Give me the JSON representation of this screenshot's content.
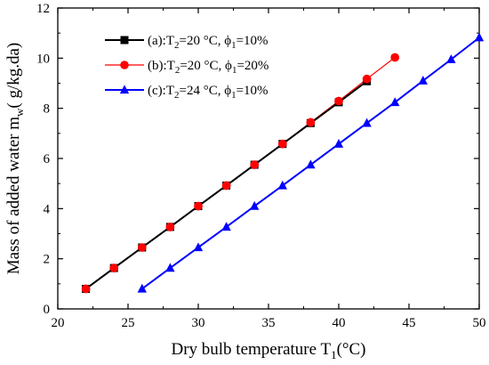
{
  "chart_data": {
    "type": "line",
    "xlabel": "Dry bulb temperature T",
    "xlabel_sub": "1",
    "xlabel_unit": "(°C)",
    "ylabel": "Mass of added water m",
    "ylabel_sub": "w",
    "ylabel_unit": "( g/kg.da)",
    "xlim": [
      20,
      50
    ],
    "ylim": [
      0,
      12
    ],
    "xticks": [
      20,
      25,
      30,
      35,
      40,
      45,
      50
    ],
    "yticks": [
      0,
      2,
      4,
      6,
      8,
      10,
      12
    ],
    "grid": false,
    "legend_position": "top-left",
    "series": [
      {
        "legend_main": "(a):T",
        "legend_sub1": "2",
        "legend_mid": "=20 °C, ϕ",
        "legend_sub2": "1",
        "legend_end": "=10%",
        "color": "#000000",
        "marker": "square",
        "x": [
          22,
          24,
          26,
          28,
          30,
          32,
          34,
          36,
          38,
          40,
          42
        ],
        "y": [
          0.8,
          1.63,
          2.45,
          3.27,
          4.1,
          4.92,
          5.75,
          6.58,
          7.41,
          8.24,
          9.08
        ]
      },
      {
        "legend_main": "(b):T",
        "legend_sub1": "2",
        "legend_mid": "=20 °C, ϕ",
        "legend_sub2": "1",
        "legend_end": "=20%",
        "color": "#ff0000",
        "marker": "circle",
        "x": [
          22,
          24,
          26,
          28,
          30,
          32,
          34,
          36,
          38,
          40,
          42,
          44
        ],
        "y": [
          0.8,
          1.63,
          2.45,
          3.27,
          4.1,
          4.92,
          5.75,
          6.58,
          7.44,
          8.29,
          9.17,
          10.03
        ]
      },
      {
        "legend_main": "(c):T",
        "legend_sub1": "2",
        "legend_mid": "=24 °C, ϕ",
        "legend_sub2": "1",
        "legend_end": "=10%",
        "color": "#0000ff",
        "marker": "triangle",
        "x": [
          26,
          28,
          30,
          32,
          34,
          36,
          38,
          40,
          42,
          44,
          46,
          48,
          50
        ],
        "y": [
          0.8,
          1.63,
          2.45,
          3.27,
          4.1,
          4.92,
          5.75,
          6.58,
          7.41,
          8.24,
          9.1,
          9.95,
          10.82
        ]
      }
    ]
  }
}
